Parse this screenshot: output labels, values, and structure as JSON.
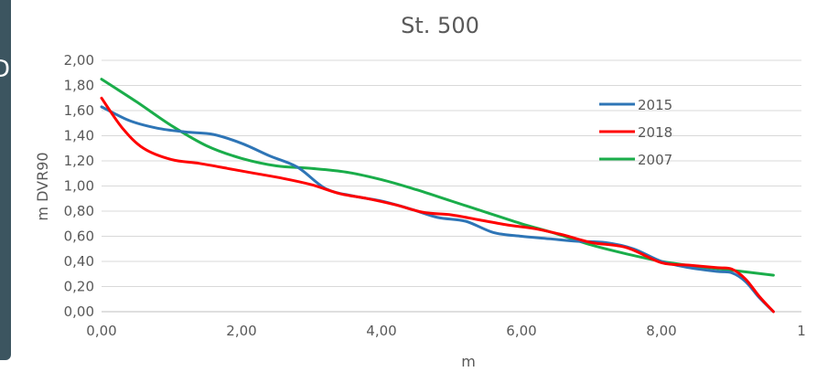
{
  "side_glyph": "D",
  "chart_data": {
    "type": "line",
    "title": "St. 500",
    "xlabel": "m",
    "ylabel": "m DVR90",
    "xlim": [
      0,
      10
    ],
    "ylim": [
      0,
      2
    ],
    "x_ticks": [
      "0,00",
      "2,00",
      "4,00",
      "6,00",
      "8,00",
      "1"
    ],
    "y_ticks": [
      "0,00",
      "0,20",
      "0,40",
      "0,60",
      "0,80",
      "1,00",
      "1,20",
      "1,40",
      "1,60",
      "1,80",
      "2,00"
    ],
    "grid": "horizontal",
    "legend_position": "right",
    "series": [
      {
        "name": "2015",
        "color": "#2e75b6",
        "x": [
          0.0,
          0.4,
          0.8,
          1.2,
          1.6,
          2.0,
          2.4,
          2.8,
          3.2,
          3.6,
          4.0,
          4.4,
          4.8,
          5.2,
          5.6,
          6.0,
          6.4,
          6.8,
          7.2,
          7.6,
          8.0,
          8.4,
          8.8,
          9.0,
          9.2,
          9.4,
          9.6
        ],
        "values": [
          1.63,
          1.52,
          1.46,
          1.43,
          1.41,
          1.34,
          1.24,
          1.15,
          0.98,
          0.92,
          0.88,
          0.82,
          0.75,
          0.72,
          0.63,
          0.6,
          0.58,
          0.56,
          0.55,
          0.5,
          0.4,
          0.35,
          0.32,
          0.31,
          0.24,
          0.11,
          0.0
        ]
      },
      {
        "name": "2018",
        "color": "#ff0000",
        "x": [
          0.0,
          0.3,
          0.6,
          1.0,
          1.4,
          1.8,
          2.2,
          2.6,
          3.0,
          3.4,
          3.8,
          4.2,
          4.6,
          5.0,
          5.4,
          5.8,
          6.2,
          6.6,
          7.0,
          7.5,
          8.0,
          8.4,
          8.8,
          9.0,
          9.2,
          9.4,
          9.6
        ],
        "values": [
          1.7,
          1.46,
          1.3,
          1.21,
          1.18,
          1.14,
          1.1,
          1.06,
          1.01,
          0.94,
          0.9,
          0.85,
          0.79,
          0.77,
          0.73,
          0.69,
          0.66,
          0.61,
          0.55,
          0.51,
          0.39,
          0.37,
          0.35,
          0.34,
          0.26,
          0.12,
          0.0
        ]
      },
      {
        "name": "2007",
        "color": "#1aad4a",
        "x": [
          0.0,
          0.5,
          1.0,
          1.5,
          2.0,
          2.5,
          3.0,
          3.5,
          4.0,
          4.5,
          5.0,
          5.5,
          6.0,
          6.5,
          7.0,
          7.5,
          8.0,
          8.5,
          9.0,
          9.6
        ],
        "values": [
          1.85,
          1.67,
          1.48,
          1.32,
          1.22,
          1.16,
          1.14,
          1.11,
          1.05,
          0.97,
          0.88,
          0.79,
          0.7,
          0.62,
          0.53,
          0.46,
          0.4,
          0.36,
          0.33,
          0.29
        ]
      }
    ]
  }
}
